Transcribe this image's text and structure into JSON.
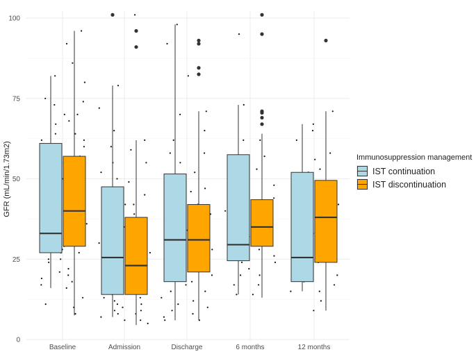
{
  "chart_data": {
    "type": "boxplot",
    "title": "",
    "xlabel": "",
    "ylabel": "GFR (mL/min/1.73m2)",
    "ylim": [
      0,
      100
    ],
    "yticks": [
      0,
      25,
      50,
      75,
      100
    ],
    "grid": true,
    "categories": [
      "Baseline",
      "Admission",
      "Discharge",
      "6 months",
      "12 months"
    ],
    "legend": {
      "title": "Immunosuppression management",
      "position": "right"
    },
    "series": [
      {
        "name": "IST continuation",
        "color": "#add8e6",
        "boxes": [
          {
            "category": "Baseline",
            "whisker_low": 16,
            "q1": 27,
            "median": 33,
            "q3": 61,
            "whisker_high": 82,
            "outliers": []
          },
          {
            "category": "Admission",
            "whisker_low": 7,
            "q1": 14,
            "median": 25.5,
            "q3": 47.5,
            "whisker_high": 79,
            "outliers": [
              101
            ]
          },
          {
            "category": "Discharge",
            "whisker_low": 6,
            "q1": 18,
            "median": 31,
            "q3": 51.5,
            "whisker_high": 98,
            "outliers": []
          },
          {
            "category": "6 months",
            "whisker_low": 14,
            "q1": 24.5,
            "median": 29.5,
            "q3": 57.5,
            "whisker_high": 73,
            "outliers": []
          },
          {
            "category": "12 months",
            "whisker_low": 15,
            "q1": 18,
            "median": 25.5,
            "q3": 52,
            "whisker_high": 67,
            "outliers": []
          }
        ]
      },
      {
        "name": "IST discontinuation",
        "color": "#ffa500",
        "boxes": [
          {
            "category": "Baseline",
            "whisker_low": 7.5,
            "q1": 29,
            "median": 40,
            "q3": 57,
            "whisker_high": 96,
            "outliers": []
          },
          {
            "category": "Admission",
            "whisker_low": 4.5,
            "q1": 14,
            "median": 23,
            "q3": 38,
            "whisker_high": 62,
            "outliers": [
              91,
              96
            ]
          },
          {
            "category": "Discharge",
            "whisker_low": 6,
            "q1": 21,
            "median": 31,
            "q3": 42,
            "whisker_high": 71,
            "outliers": [
              82.5,
              84.5,
              92,
              93
            ]
          },
          {
            "category": "6 months",
            "whisker_low": 13,
            "q1": 29,
            "median": 35,
            "q3": 43.5,
            "whisker_high": 64,
            "outliers": [
              67,
              69,
              70.5,
              71,
              95,
              101
            ]
          },
          {
            "category": "12 months",
            "whisker_low": 9,
            "q1": 24,
            "median": 38,
            "q3": 49.5,
            "whisker_high": 71,
            "outliers": [
              93
            ]
          }
        ]
      }
    ],
    "jitter_points": [
      [
        0,
        82
      ],
      [
        0,
        75
      ],
      [
        0,
        73
      ],
      [
        0,
        70
      ],
      [
        0,
        67
      ],
      [
        0,
        64
      ],
      [
        0,
        62
      ],
      [
        0,
        60
      ],
      [
        0,
        58
      ],
      [
        0,
        56
      ],
      [
        0,
        54
      ],
      [
        0,
        52
      ],
      [
        0,
        50
      ],
      [
        0,
        48
      ],
      [
        0,
        46
      ],
      [
        0,
        45
      ],
      [
        0,
        43
      ],
      [
        0,
        41
      ],
      [
        0,
        39
      ],
      [
        0,
        37
      ],
      [
        0,
        35
      ],
      [
        0,
        34
      ],
      [
        0,
        33
      ],
      [
        0,
        32
      ],
      [
        0,
        31
      ],
      [
        0,
        29
      ],
      [
        0,
        28
      ],
      [
        0,
        27
      ],
      [
        0,
        25
      ],
      [
        0,
        24
      ],
      [
        0,
        21
      ],
      [
        0,
        19
      ],
      [
        0,
        17
      ],
      [
        0,
        11
      ],
      [
        0,
        48
      ],
      [
        0,
        42
      ],
      [
        0,
        36
      ],
      [
        0,
        30
      ],
      [
        0.45,
        96
      ],
      [
        0.45,
        92
      ],
      [
        0.45,
        86
      ],
      [
        0.45,
        80
      ],
      [
        0.45,
        74
      ],
      [
        0.45,
        68
      ],
      [
        0.45,
        64
      ],
      [
        0.45,
        60
      ],
      [
        0.45,
        57
      ],
      [
        0.45,
        55
      ],
      [
        0.45,
        52
      ],
      [
        0.45,
        50
      ],
      [
        0.45,
        48
      ],
      [
        0.45,
        46
      ],
      [
        0.45,
        44
      ],
      [
        0.45,
        42
      ],
      [
        0.45,
        40
      ],
      [
        0.45,
        39
      ],
      [
        0.45,
        38
      ],
      [
        0.45,
        36
      ],
      [
        0.45,
        35
      ],
      [
        0.45,
        33
      ],
      [
        0.45,
        31
      ],
      [
        0.45,
        29
      ],
      [
        0.45,
        27
      ],
      [
        0.45,
        25
      ],
      [
        0.45,
        22
      ],
      [
        0.45,
        20
      ],
      [
        0.45,
        18
      ],
      [
        0.45,
        16
      ],
      [
        0.45,
        13
      ],
      [
        0.45,
        10
      ],
      [
        0.45,
        8
      ],
      [
        0.45,
        62
      ],
      [
        0.45,
        70
      ],
      [
        1,
        79
      ],
      [
        1,
        72
      ],
      [
        1,
        65
      ],
      [
        1,
        60
      ],
      [
        1,
        55
      ],
      [
        1,
        50
      ],
      [
        1,
        47
      ],
      [
        1,
        45
      ],
      [
        1,
        42
      ],
      [
        1,
        40
      ],
      [
        1,
        37
      ],
      [
        1,
        35
      ],
      [
        1,
        32
      ],
      [
        1,
        30
      ],
      [
        1,
        28
      ],
      [
        1,
        26
      ],
      [
        1,
        24
      ],
      [
        1,
        22
      ],
      [
        1,
        20
      ],
      [
        1,
        18
      ],
      [
        1,
        17
      ],
      [
        1,
        15
      ],
      [
        1,
        14
      ],
      [
        1,
        13
      ],
      [
        1,
        12
      ],
      [
        1,
        11
      ],
      [
        1,
        10
      ],
      [
        1,
        9
      ],
      [
        1,
        8
      ],
      [
        1,
        7
      ],
      [
        1,
        6
      ],
      [
        1,
        52
      ],
      [
        1,
        38
      ],
      [
        1.45,
        101
      ],
      [
        1.45,
        62
      ],
      [
        1.45,
        59
      ],
      [
        1.45,
        55
      ],
      [
        1.45,
        49
      ],
      [
        1.45,
        45
      ],
      [
        1.45,
        42
      ],
      [
        1.45,
        39
      ],
      [
        1.45,
        37
      ],
      [
        1.45,
        35
      ],
      [
        1.45,
        33
      ],
      [
        1.45,
        31
      ],
      [
        1.45,
        29
      ],
      [
        1.45,
        27
      ],
      [
        1.45,
        25
      ],
      [
        1.45,
        23
      ],
      [
        1.45,
        21
      ],
      [
        1.45,
        19
      ],
      [
        1.45,
        17
      ],
      [
        1.45,
        15
      ],
      [
        1.45,
        13
      ],
      [
        1.45,
        11
      ],
      [
        1.45,
        9
      ],
      [
        1.45,
        8
      ],
      [
        1.45,
        6
      ],
      [
        1.45,
        5
      ],
      [
        1.45,
        28
      ],
      [
        1.45,
        36
      ],
      [
        2,
        98
      ],
      [
        2,
        92
      ],
      [
        2,
        70
      ],
      [
        2,
        62
      ],
      [
        2,
        58
      ],
      [
        2,
        55
      ],
      [
        2,
        51
      ],
      [
        2,
        48
      ],
      [
        2,
        45
      ],
      [
        2,
        42
      ],
      [
        2,
        40
      ],
      [
        2,
        37
      ],
      [
        2,
        35
      ],
      [
        2,
        33
      ],
      [
        2,
        31
      ],
      [
        2,
        29
      ],
      [
        2,
        27
      ],
      [
        2,
        25
      ],
      [
        2,
        23
      ],
      [
        2,
        21
      ],
      [
        2,
        19
      ],
      [
        2,
        17
      ],
      [
        2,
        15
      ],
      [
        2,
        13
      ],
      [
        2,
        11
      ],
      [
        2,
        9
      ],
      [
        2,
        7
      ],
      [
        2,
        6
      ],
      [
        2,
        43
      ],
      [
        2.45,
        82
      ],
      [
        2.45,
        71
      ],
      [
        2.45,
        65
      ],
      [
        2.45,
        58
      ],
      [
        2.45,
        52
      ],
      [
        2.45,
        46
      ],
      [
        2.45,
        42
      ],
      [
        2.45,
        39
      ],
      [
        2.45,
        36
      ],
      [
        2.45,
        34
      ],
      [
        2.45,
        32
      ],
      [
        2.45,
        30
      ],
      [
        2.45,
        28
      ],
      [
        2.45,
        26
      ],
      [
        2.45,
        24
      ],
      [
        2.45,
        22
      ],
      [
        2.45,
        20
      ],
      [
        2.45,
        18
      ],
      [
        2.45,
        15
      ],
      [
        2.45,
        12
      ],
      [
        2.45,
        10
      ],
      [
        2.45,
        8
      ],
      [
        2.45,
        6
      ],
      [
        2.45,
        47
      ],
      [
        3,
        95
      ],
      [
        3,
        73
      ],
      [
        3,
        62
      ],
      [
        3,
        55
      ],
      [
        3,
        48
      ],
      [
        3,
        44
      ],
      [
        3,
        40
      ],
      [
        3,
        36
      ],
      [
        3,
        33
      ],
      [
        3,
        30
      ],
      [
        3,
        28
      ],
      [
        3,
        26
      ],
      [
        3,
        24
      ],
      [
        3,
        20
      ],
      [
        3,
        17
      ],
      [
        3,
        14
      ],
      [
        3.45,
        62
      ],
      [
        3.45,
        57
      ],
      [
        3.45,
        53
      ],
      [
        3.45,
        48
      ],
      [
        3.45,
        44
      ],
      [
        3.45,
        41
      ],
      [
        3.45,
        38
      ],
      [
        3.45,
        36
      ],
      [
        3.45,
        34
      ],
      [
        3.45,
        32
      ],
      [
        3.45,
        30
      ],
      [
        3.45,
        28
      ],
      [
        3.45,
        26
      ],
      [
        3.45,
        24
      ],
      [
        3.45,
        22
      ],
      [
        3.45,
        20
      ],
      [
        3.45,
        17
      ],
      [
        3.45,
        14
      ],
      [
        4,
        67
      ],
      [
        4,
        62
      ],
      [
        4,
        56
      ],
      [
        4,
        52
      ],
      [
        4,
        48
      ],
      [
        4,
        44
      ],
      [
        4,
        40
      ],
      [
        4,
        37
      ],
      [
        4,
        33
      ],
      [
        4,
        30
      ],
      [
        4,
        27
      ],
      [
        4,
        24
      ],
      [
        4,
        21
      ],
      [
        4,
        18
      ],
      [
        4,
        15
      ],
      [
        4,
        9
      ],
      [
        4.45,
        71
      ],
      [
        4.45,
        65
      ],
      [
        4.45,
        58
      ],
      [
        4.45,
        53
      ],
      [
        4.45,
        49
      ],
      [
        4.45,
        45
      ],
      [
        4.45,
        42
      ],
      [
        4.45,
        38
      ],
      [
        4.45,
        35
      ],
      [
        4.45,
        31
      ],
      [
        4.45,
        27
      ],
      [
        4.45,
        24
      ],
      [
        4.45,
        20
      ],
      [
        4.45,
        17
      ],
      [
        4.45,
        15
      ],
      [
        4.45,
        12
      ]
    ]
  }
}
